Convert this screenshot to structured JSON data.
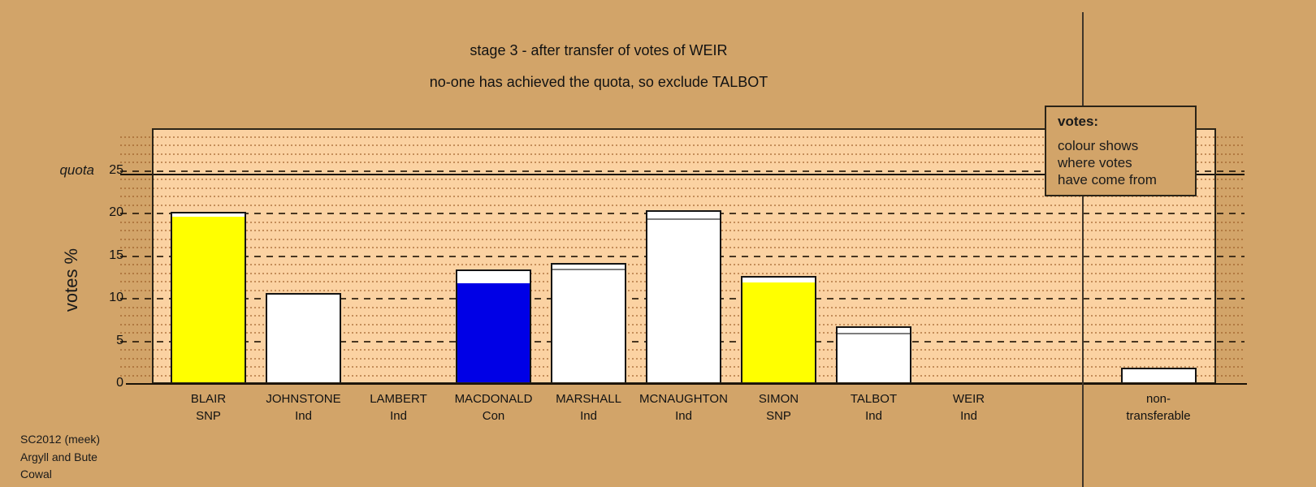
{
  "window": {
    "bg": "#d2a469",
    "plot_bg": "#fbd2a2"
  },
  "title": {
    "line1": "stage 3 - after transfer of votes of WEIR",
    "line2": "no-one has achieved the quota, so exclude TALBOT"
  },
  "y_axis": {
    "label": "votes %",
    "quota_label": "quota",
    "ticks": [
      0,
      5,
      10,
      15,
      20,
      25
    ]
  },
  "legend": {
    "heading": "votes:",
    "line1": "colour shows",
    "line2": "where votes",
    "line3": "have come from"
  },
  "footer": {
    "line1": "SC2012 (meek)",
    "line2": "Argyll and Bute",
    "line3": "Cowal"
  },
  "chart_data": {
    "type": "bar",
    "stacked": true,
    "title": "stage 3 - after transfer of votes of WEIR",
    "subtitle": "no-one has achieved the quota, so exclude TALBOT",
    "ylabel": "votes %",
    "ylim": [
      0,
      30
    ],
    "grid": {
      "minor_step": 1,
      "minor_style": "dotted",
      "major_step": 5,
      "major_style": "dashed"
    },
    "quota": {
      "label": "quota",
      "value": 25
    },
    "legend_note": "colour shows where votes have come from",
    "colors": {
      "SNP": "#ffff00",
      "Con": "#0000e6",
      "Ind": "#ffffff"
    },
    "categories": [
      {
        "label_line1": "BLAIR",
        "label_line2": "SNP",
        "total": 20.15,
        "segments": [
          {
            "value": 19.6,
            "color": "#ffff00"
          },
          {
            "value": 0.55,
            "color": "#ffffff"
          }
        ]
      },
      {
        "label_line1": "JOHNSTONE",
        "label_line2": "Ind",
        "total": 10.65,
        "segments": [
          {
            "value": 9.65,
            "color": "#ffffff"
          },
          {
            "value": 1.0,
            "color": "#ffffff"
          }
        ]
      },
      {
        "label_line1": "LAMBERT",
        "label_line2": "Ind",
        "total": 0,
        "segments": []
      },
      {
        "label_line1": "MACDONALD",
        "label_line2": "Con",
        "total": 13.4,
        "segments": [
          {
            "value": 11.8,
            "color": "#0000e6"
          },
          {
            "value": 1.6,
            "color": "#ffffff"
          }
        ]
      },
      {
        "label_line1": "MARSHALL",
        "label_line2": "Ind",
        "total": 14.15,
        "segments": [
          {
            "value": 12.9,
            "color": "#ffffff"
          },
          {
            "value": 0.6,
            "color": "#ffffff"
          },
          {
            "value": 0.65,
            "color": "#ffffff"
          }
        ]
      },
      {
        "label_line1": "MCNAUGHTON",
        "label_line2": "Ind",
        "total": 20.4,
        "segments": [
          {
            "value": 18.65,
            "color": "#ffffff"
          },
          {
            "value": 0.75,
            "color": "#ffffff"
          },
          {
            "value": 1.0,
            "color": "#ffffff"
          }
        ]
      },
      {
        "label_line1": "SIMON",
        "label_line2": "SNP",
        "total": 12.65,
        "segments": [
          {
            "value": 11.9,
            "color": "#ffff00"
          },
          {
            "value": 0.75,
            "color": "#ffffff"
          }
        ]
      },
      {
        "label_line1": "TALBOT",
        "label_line2": "Ind",
        "total": 6.75,
        "segments": [
          {
            "value": 5.65,
            "color": "#ffffff"
          },
          {
            "value": 0.35,
            "color": "#ffffff"
          },
          {
            "value": 0.75,
            "color": "#ffffff"
          }
        ]
      },
      {
        "label_line1": "WEIR",
        "label_line2": "Ind",
        "total": 0,
        "segments": []
      },
      {
        "label_line1": "non-",
        "label_line2": "transferable",
        "total": 1.9,
        "segments": [
          {
            "value": 0.75,
            "color": "#ffffff"
          },
          {
            "value": 1.15,
            "color": "#ffffff"
          }
        ]
      }
    ]
  }
}
